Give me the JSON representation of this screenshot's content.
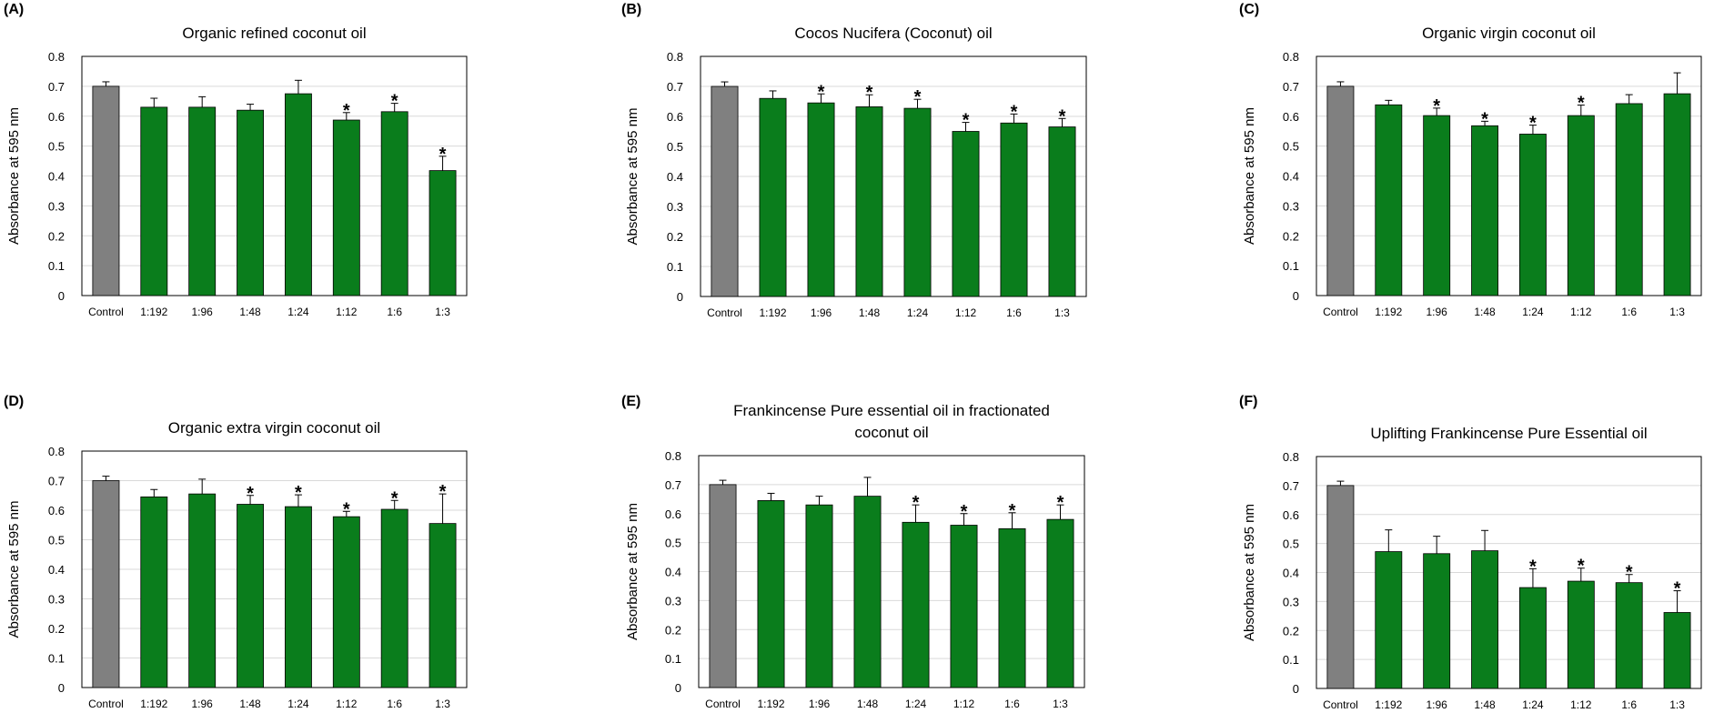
{
  "colors": {
    "control": "#808080",
    "treatment": "#0a7d1c",
    "grid": "#d9d9d9",
    "axis": "#000000"
  },
  "chart_data": [
    {
      "panel": "(A)",
      "type": "bar",
      "title_lines": [
        "Organic refined coconut oil"
      ],
      "ylabel": "Absorbance at 595 nm",
      "xlabel": "",
      "ylim": [
        0,
        0.8
      ],
      "yticks": [
        "0",
        "0.1",
        "0.2",
        "0.3",
        "0.4",
        "0.5",
        "0.6",
        "0.7",
        "0.8"
      ],
      "grid": true,
      "categories": [
        "Control",
        "1:192",
        "1:96",
        "1:48",
        "1:24",
        "1:12",
        "1:6",
        "1:3"
      ],
      "values": [
        0.7,
        0.63,
        0.63,
        0.62,
        0.675,
        0.587,
        0.615,
        0.418
      ],
      "errors": [
        0.015,
        0.03,
        0.035,
        0.02,
        0.045,
        0.025,
        0.028,
        0.048
      ],
      "significant": [
        false,
        false,
        false,
        false,
        false,
        true,
        true,
        true
      ],
      "annotation": "*"
    },
    {
      "panel": "(B)",
      "type": "bar",
      "title_lines": [
        "Cocos Nucifera (Coconut) oil"
      ],
      "ylabel": "Absorbance at 595 nm",
      "xlabel": "",
      "ylim": [
        0,
        0.8
      ],
      "yticks": [
        "0",
        "0.1",
        "0.2",
        "0.3",
        "0.4",
        "0.5",
        "0.6",
        "0.7",
        "0.8"
      ],
      "grid": true,
      "categories": [
        "Control",
        "1:192",
        "1:96",
        "1:48",
        "1:24",
        "1:12",
        "1:6",
        "1:3"
      ],
      "values": [
        0.7,
        0.66,
        0.645,
        0.632,
        0.627,
        0.55,
        0.578,
        0.565
      ],
      "errors": [
        0.015,
        0.025,
        0.03,
        0.04,
        0.03,
        0.03,
        0.03,
        0.028
      ],
      "significant": [
        false,
        false,
        true,
        true,
        true,
        true,
        true,
        true
      ],
      "annotation": "*"
    },
    {
      "panel": "(C)",
      "type": "bar",
      "title_lines": [
        "Organic virgin coconut oil"
      ],
      "ylabel": "Absorbance at 595 nm",
      "xlabel": "",
      "ylim": [
        0,
        0.8
      ],
      "yticks": [
        "0",
        "0.1",
        "0.2",
        "0.3",
        "0.4",
        "0.5",
        "0.6",
        "0.7",
        "0.8"
      ],
      "grid": true,
      "categories": [
        "Control",
        "1:192",
        "1:96",
        "1:48",
        "1:24",
        "1:12",
        "1:6",
        "1:3"
      ],
      "values": [
        0.7,
        0.638,
        0.602,
        0.568,
        0.54,
        0.602,
        0.642,
        0.675
      ],
      "errors": [
        0.015,
        0.015,
        0.025,
        0.015,
        0.03,
        0.035,
        0.03,
        0.07
      ],
      "significant": [
        false,
        false,
        true,
        true,
        true,
        true,
        false,
        false
      ],
      "annotation": "*"
    },
    {
      "panel": "(D)",
      "type": "bar",
      "title_lines": [
        "Organic extra virgin coconut oil"
      ],
      "ylabel": "Absorbance at 595 nm",
      "xlabel": "",
      "ylim": [
        0,
        0.8
      ],
      "yticks": [
        "0",
        "0.1",
        "0.2",
        "0.3",
        "0.4",
        "0.5",
        "0.6",
        "0.7",
        "0.8"
      ],
      "grid": true,
      "categories": [
        "Control",
        "1:192",
        "1:96",
        "1:48",
        "1:24",
        "1:12",
        "1:6",
        "1:3"
      ],
      "values": [
        0.7,
        0.645,
        0.655,
        0.62,
        0.612,
        0.578,
        0.603,
        0.555
      ],
      "errors": [
        0.015,
        0.025,
        0.05,
        0.03,
        0.04,
        0.018,
        0.03,
        0.1
      ],
      "significant": [
        false,
        false,
        false,
        true,
        true,
        true,
        true,
        true
      ],
      "annotation": "*"
    },
    {
      "panel": "(E)",
      "type": "bar",
      "title_lines": [
        "Frankincense Pure essential oil in fractionated",
        "coconut oil"
      ],
      "ylabel": "Absorbance at 595 nm",
      "xlabel": "",
      "ylim": [
        0,
        0.8
      ],
      "yticks": [
        "0",
        "0.1",
        "0.2",
        "0.3",
        "0.4",
        "0.5",
        "0.6",
        "0.7",
        "0.8"
      ],
      "grid": true,
      "categories": [
        "Control",
        "1:192",
        "1:96",
        "1:48",
        "1:24",
        "1:12",
        "1:6",
        "1:3"
      ],
      "values": [
        0.7,
        0.645,
        0.63,
        0.66,
        0.57,
        0.56,
        0.548,
        0.58
      ],
      "errors": [
        0.015,
        0.025,
        0.03,
        0.065,
        0.06,
        0.04,
        0.055,
        0.05
      ],
      "significant": [
        false,
        false,
        false,
        false,
        true,
        true,
        true,
        true
      ],
      "annotation": "*"
    },
    {
      "panel": "(F)",
      "type": "bar",
      "title_lines": [
        "Uplifting Frankincense Pure Essential oil"
      ],
      "ylabel": "Absorbance at 595 nm",
      "xlabel": "",
      "ylim": [
        0,
        0.8
      ],
      "yticks": [
        "0",
        "0.1",
        "0.2",
        "0.3",
        "0.4",
        "0.5",
        "0.6",
        "0.7",
        "0.8"
      ],
      "grid": true,
      "categories": [
        "Control",
        "1:192",
        "1:96",
        "1:48",
        "1:24",
        "1:12",
        "1:6",
        "1:3"
      ],
      "values": [
        0.7,
        0.472,
        0.465,
        0.475,
        0.348,
        0.37,
        0.365,
        0.262
      ],
      "errors": [
        0.015,
        0.075,
        0.06,
        0.07,
        0.065,
        0.045,
        0.028,
        0.075
      ],
      "significant": [
        false,
        false,
        false,
        false,
        true,
        true,
        true,
        true
      ],
      "annotation": "*"
    }
  ]
}
